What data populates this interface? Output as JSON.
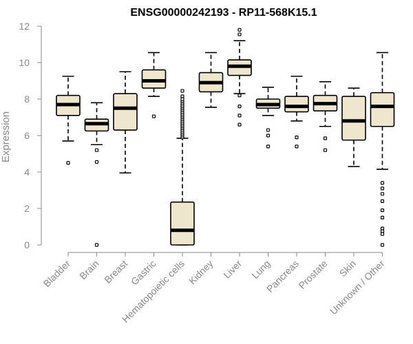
{
  "chart_data": {
    "type": "boxplot",
    "title": "ENSG00000242193 - RP11-568K15.1",
    "ylabel": "Expression",
    "xlabel": "",
    "ylim": [
      0,
      12
    ],
    "yticks": [
      0,
      2,
      4,
      6,
      8,
      10,
      12
    ],
    "colors": {
      "box_fill": "#efe7cd",
      "stroke": "#000000",
      "axis": "#888888"
    },
    "categories": [
      "Bladder",
      "Brain",
      "Breast",
      "Gastric",
      "Hematopoietic cells",
      "Kidney",
      "Liver",
      "Lung",
      "Pancreas",
      "Prostate",
      "Skin",
      "Unknown / Other"
    ],
    "boxes": [
      {
        "q1": 7.1,
        "median": 7.7,
        "q3": 8.2,
        "lo": 5.7,
        "hi": 9.25,
        "outliers": [
          4.5
        ]
      },
      {
        "q1": 6.25,
        "median": 6.65,
        "q3": 6.9,
        "lo": 5.5,
        "hi": 7.8,
        "outliers": [
          5.2,
          4.55,
          0.0
        ]
      },
      {
        "q1": 6.3,
        "median": 7.5,
        "q3": 8.3,
        "lo": 3.95,
        "hi": 9.5,
        "outliers": []
      },
      {
        "q1": 8.6,
        "median": 9.0,
        "q3": 9.6,
        "lo": 8.15,
        "hi": 10.55,
        "outliers": [
          7.05
        ]
      },
      {
        "q1": 0.0,
        "median": 0.8,
        "q3": 2.35,
        "lo": 0.0,
        "hi": 5.85,
        "outliers": [
          5.9,
          6.0,
          6.1,
          6.2,
          6.3,
          6.4,
          6.5,
          6.6,
          6.7,
          6.8,
          6.9,
          7.0,
          7.1,
          7.2,
          7.3,
          7.4,
          7.5,
          7.6,
          7.7,
          7.8,
          7.9,
          8.0,
          8.15,
          8.45
        ]
      },
      {
        "q1": 8.4,
        "median": 8.9,
        "q3": 9.45,
        "lo": 7.55,
        "hi": 10.55,
        "outliers": []
      },
      {
        "q1": 9.3,
        "median": 9.8,
        "q3": 10.15,
        "lo": 8.3,
        "hi": 11.2,
        "outliers": [
          8.2,
          7.6,
          7.1,
          6.6,
          11.55,
          11.8
        ]
      },
      {
        "q1": 7.5,
        "median": 7.7,
        "q3": 8.0,
        "lo": 7.1,
        "hi": 8.65,
        "outliers": [
          6.3,
          6.0,
          5.4
        ]
      },
      {
        "q1": 7.3,
        "median": 7.6,
        "q3": 8.15,
        "lo": 6.8,
        "hi": 9.25,
        "outliers": [
          5.9,
          5.4
        ]
      },
      {
        "q1": 7.35,
        "median": 7.75,
        "q3": 8.2,
        "lo": 6.5,
        "hi": 8.95,
        "outliers": [
          5.85,
          5.2
        ]
      },
      {
        "q1": 5.75,
        "median": 6.8,
        "q3": 8.15,
        "lo": 4.3,
        "hi": 8.6,
        "outliers": []
      },
      {
        "q1": 6.5,
        "median": 7.6,
        "q3": 8.35,
        "lo": 4.15,
        "hi": 10.55,
        "outliers": [
          3.4,
          3.1,
          2.8,
          2.4,
          1.9,
          1.5,
          0.9,
          0.75,
          0.6,
          0.0
        ]
      }
    ]
  }
}
